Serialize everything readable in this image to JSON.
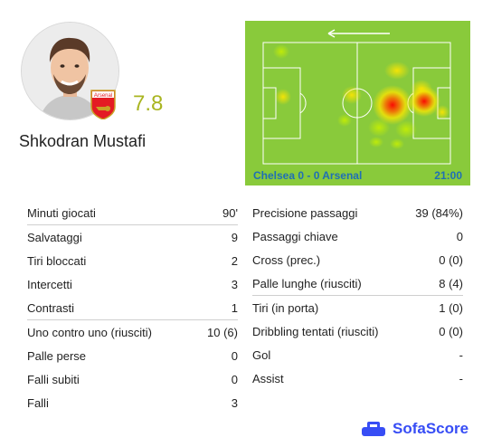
{
  "player": {
    "name": "Shkodran Mustafi",
    "rating": "7.8",
    "club_badge_text": "Arsenal"
  },
  "match": {
    "result": "Chelsea 0 - 0 Arsenal",
    "time": "21:00"
  },
  "stats_left": [
    {
      "label": "Minuti giocati",
      "value": "90'"
    },
    {
      "label": "Salvataggi",
      "value": "9"
    },
    {
      "label": "Tiri bloccati",
      "value": "2"
    },
    {
      "label": "Intercetti",
      "value": "3"
    },
    {
      "label": "Contrasti",
      "value": "1"
    },
    {
      "label": "Uno contro uno (riusciti)",
      "value": "10 (6)"
    },
    {
      "label": "Palle perse",
      "value": "0"
    },
    {
      "label": "Falli subiti",
      "value": "0"
    },
    {
      "label": "Falli",
      "value": "3"
    }
  ],
  "stats_right": [
    {
      "label": "Precisione passaggi",
      "value": "39 (84%)"
    },
    {
      "label": "Passaggi chiave",
      "value": "0"
    },
    {
      "label": "Cross (prec.)",
      "value": "0 (0)"
    },
    {
      "label": "Palle lunghe (riusciti)",
      "value": "8 (4)"
    },
    {
      "label": "Tiri (in porta)",
      "value": "1 (0)"
    },
    {
      "label": "Dribbling tentati (riusciti)",
      "value": "0 (0)"
    },
    {
      "label": "Gol",
      "value": "-"
    },
    {
      "label": "Assist",
      "value": "-"
    }
  ],
  "brand": {
    "name": "SofaScore"
  },
  "colors": {
    "rating": "#a9b521",
    "accent": "#1f6fb5",
    "brand": "#374df5",
    "pitch": "#89ca3b"
  },
  "icons": {
    "avatar": "player-photo",
    "badge": "arsenal-crest-icon",
    "direction": "arrow-left-icon",
    "logo": "sofascore-logo-icon"
  }
}
